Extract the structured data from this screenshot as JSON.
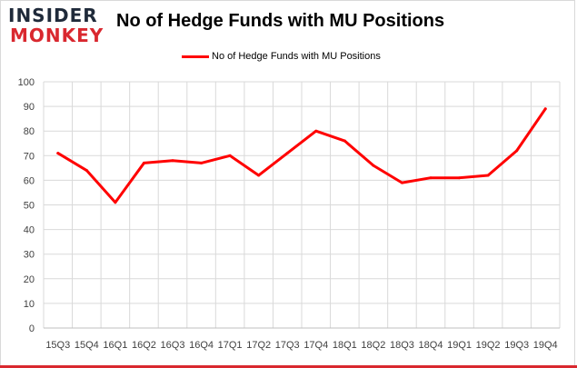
{
  "logo": {
    "line1": "INSIDER",
    "line2": "MONKEY",
    "accent_color": "#d9282f",
    "dark_color": "#1f2a3a"
  },
  "chart_data": {
    "type": "line",
    "title": "No of Hedge Funds with MU Positions",
    "xlabel": "",
    "ylabel": "",
    "ylim": [
      0,
      100
    ],
    "yticks": [
      0,
      10,
      20,
      30,
      40,
      50,
      60,
      70,
      80,
      90,
      100
    ],
    "grid": "horizontal",
    "legend_position": "top-center",
    "categories": [
      "15Q3",
      "15Q4",
      "16Q1",
      "16Q2",
      "16Q3",
      "16Q4",
      "17Q1",
      "17Q2",
      "17Q3",
      "17Q4",
      "18Q1",
      "18Q2",
      "18Q3",
      "18Q4",
      "19Q1",
      "19Q2",
      "19Q3",
      "19Q4"
    ],
    "series": [
      {
        "name": "No of Hedge Funds with MU Positions",
        "color": "#ff0000",
        "values": [
          71,
          64,
          51,
          67,
          68,
          67,
          70,
          62,
          71,
          80,
          76,
          66,
          59,
          61,
          61,
          62,
          72,
          89
        ]
      }
    ]
  }
}
